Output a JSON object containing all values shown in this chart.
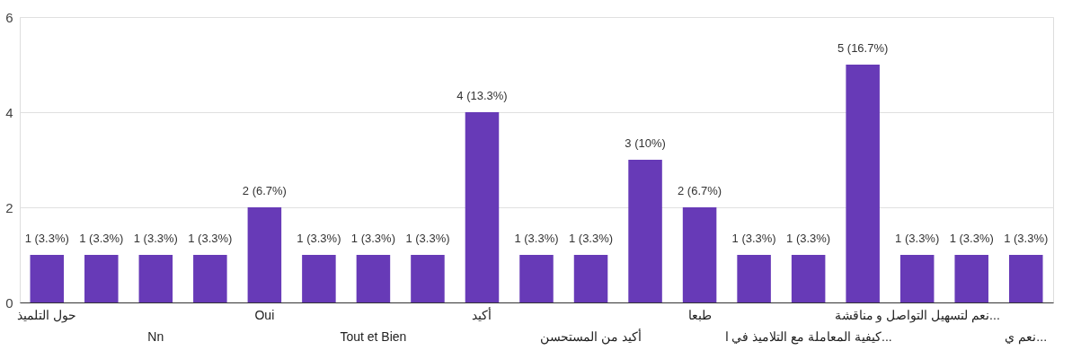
{
  "chart_data": {
    "type": "bar",
    "categories": [
      "حول التلميذ",
      null,
      "Nn",
      null,
      "Oui",
      null,
      "Tout et Bien",
      null,
      "أكيد",
      null,
      "أكيد من المستحسن",
      null,
      "طبعا",
      null,
      "كيفية المعاملة مع التلاميذ في ا...",
      null,
      "نعم لتسهيل التواصل و مناقشة...",
      null,
      "نعم ي..."
    ],
    "values": [
      1,
      1,
      1,
      1,
      2,
      1,
      1,
      1,
      4,
      1,
      1,
      3,
      2,
      1,
      1,
      5,
      1,
      1,
      1
    ],
    "value_labels": [
      "1 (3.3%)",
      "1 (3.3%)",
      "1 (3.3%)",
      "1 (3.3%)",
      "2 (6.7%)",
      "1 (3.3%)",
      "1 (3.3%)",
      "1 (3.3%)",
      "4 (13.3%)",
      "1 (3.3%)",
      "1 (3.3%)",
      "3 (10%)",
      "2 (6.7%)",
      "1 (3.3%)",
      "1 (3.3%)",
      "5 (16.7%)",
      "1 (3.3%)",
      "1 (3.3%)",
      "1 (3.3%)"
    ],
    "color": "#673ab7",
    "ylim": [
      0,
      6
    ],
    "yticks": [
      0,
      2,
      4,
      6
    ],
    "grid": "y"
  }
}
